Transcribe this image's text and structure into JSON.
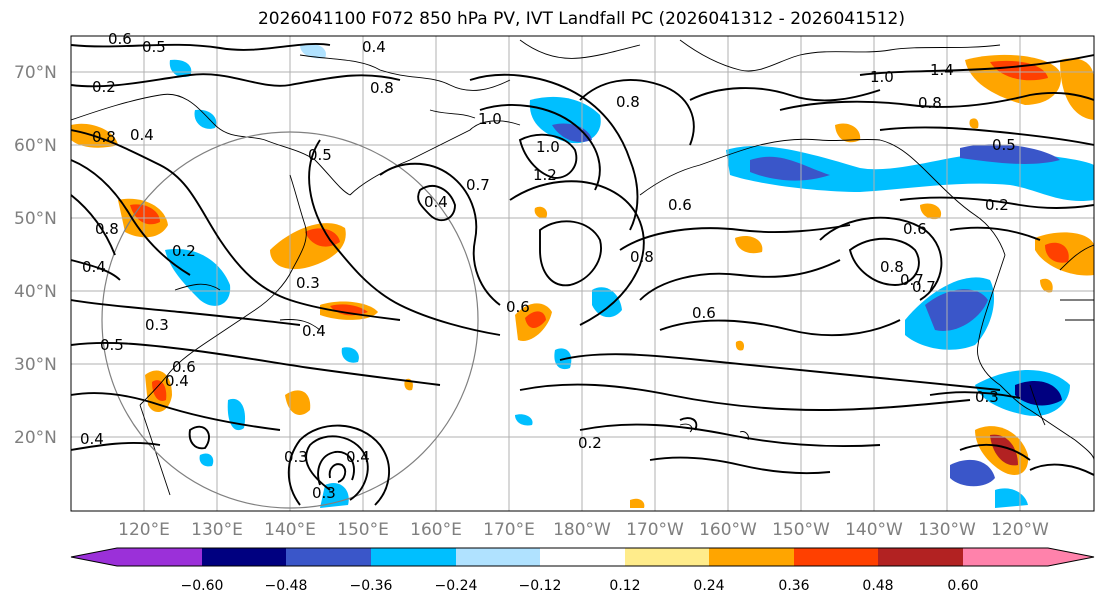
{
  "title": "2026041100 F072 850 hPa PV, IVT Landfall PC (2026041312 - 2026041512)",
  "lat_labels": [
    "70°N",
    "60°N",
    "50°N",
    "40°N",
    "30°N",
    "20°N"
  ],
  "lon_labels": [
    "120°E",
    "130°E",
    "140°E",
    "150°E",
    "160°E",
    "170°E",
    "180°W",
    "170°W",
    "160°W",
    "150°W",
    "140°W",
    "130°W",
    "120°W"
  ],
  "colorbar": {
    "ticks": [
      "−0.60",
      "−0.48",
      "−0.36",
      "−0.24",
      "−0.12",
      "0.12",
      "0.24",
      "0.36",
      "0.48",
      "0.60"
    ],
    "colors": [
      "#9b30d9",
      "#000080",
      "#3a56c9",
      "#00bfff",
      "#b0e2ff",
      "#ffffff",
      "#ffec8b",
      "#ffa500",
      "#ff4000",
      "#b22222",
      "#ff82ab"
    ]
  },
  "contour_labels": [
    "0.6",
    "0.5",
    "0.4",
    "0.2",
    "0.8",
    "0.8",
    "0.4",
    "0.5",
    "0.7",
    "1.0",
    "1.0",
    "1.2",
    "0.8",
    "1.0",
    "1.4",
    "0.8",
    "0.5",
    "0.2",
    "0.6",
    "0.6",
    "0.8",
    "0.7",
    "0.6",
    "0.6",
    "0.8",
    "0.4",
    "0.2",
    "0.3",
    "0.3",
    "0.4",
    "0.5",
    "0.6",
    "0.4",
    "0.4",
    "0.3",
    "0.3",
    "0.4",
    "0.2",
    "0.7",
    "0.4",
    "0.8",
    "0.3"
  ],
  "colors": {
    "coast": "#000000",
    "grid": "#b0b0b0",
    "label": "#7f7f7f",
    "circle": "#808080"
  }
}
